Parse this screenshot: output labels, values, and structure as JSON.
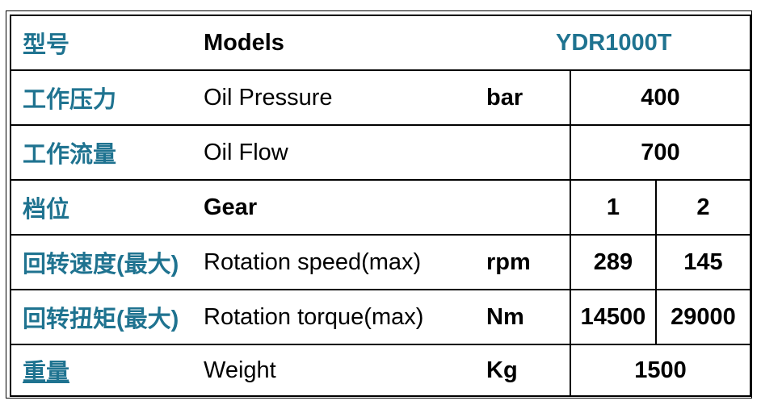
{
  "table": {
    "header": {
      "zh": "型号",
      "en": "Models",
      "model": "YDR1000T"
    },
    "rows": [
      {
        "zh": "工作压力",
        "en": "Oil Pressure",
        "unit": "bar",
        "value": "400"
      },
      {
        "zh": "工作流量",
        "en": "Oil Flow",
        "unit": "",
        "value": "700"
      },
      {
        "zh": "档位",
        "en": "Gear",
        "unit": "",
        "v1": "1",
        "v2": "2"
      },
      {
        "zh": "回转速度(最大)",
        "en": "Rotation speed(max)",
        "unit": "rpm",
        "v1": "289",
        "v2": "145"
      },
      {
        "zh": "回转扭矩(最大)",
        "en": "Rotation torque(max)",
        "unit": "Nm",
        "v1": "14500",
        "v2": "29000"
      },
      {
        "zh": "重量",
        "en": "Weight",
        "unit": "Kg",
        "value": "1500"
      }
    ]
  },
  "colors": {
    "accent": "#1f7390",
    "text": "#000000",
    "border": "#000000"
  }
}
